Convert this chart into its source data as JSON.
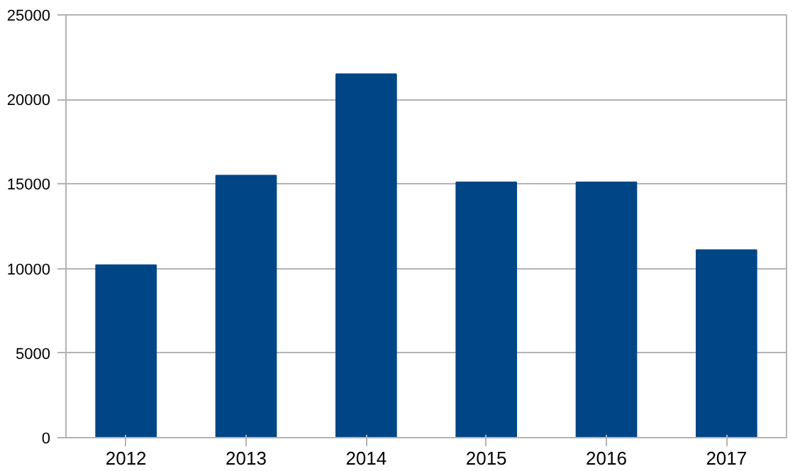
{
  "chart_data": {
    "type": "bar",
    "categories": [
      "2012",
      "2013",
      "2014",
      "2015",
      "2016",
      "2017"
    ],
    "values": [
      10200,
      15500,
      21500,
      15100,
      15100,
      11100
    ],
    "color": "#004586",
    "ylim": [
      0,
      25000
    ],
    "yticks": [
      0,
      5000,
      10000,
      15000,
      20000,
      25000
    ],
    "grid": "y"
  }
}
